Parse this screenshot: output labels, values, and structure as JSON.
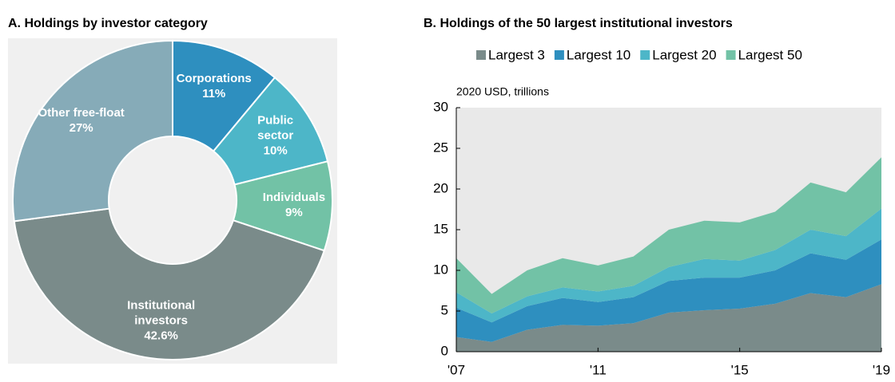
{
  "chart_data": [
    {
      "type": "pie",
      "title": "A. Holdings by investor category",
      "donut": true,
      "categories": [
        "Corporations",
        "Public sector",
        "Individuals",
        "Institutional investors",
        "Other free-float"
      ],
      "values": [
        11,
        10,
        9,
        42.6,
        27
      ],
      "value_labels": [
        "11%",
        "10%",
        "9%",
        "42.6%",
        "27%"
      ],
      "colors": [
        "#2e8fbf",
        "#4db6c8",
        "#72c2a6",
        "#7a8b8a",
        "#86abb8"
      ]
    },
    {
      "type": "stacked-area",
      "title": "B. Holdings of the 50 largest institutional investors",
      "y_label": "2020 USD, trillions",
      "x": [
        2007,
        2008,
        2009,
        2010,
        2011,
        2012,
        2013,
        2014,
        2015,
        2016,
        2017,
        2018,
        2019
      ],
      "series": [
        {
          "name": "Largest 3",
          "color": "#7a8b8a",
          "values": [
            1.8,
            1.2,
            2.7,
            3.3,
            3.2,
            3.5,
            4.8,
            5.1,
            5.3,
            5.9,
            7.2,
            6.7,
            8.3
          ]
        },
        {
          "name": "Largest 10",
          "color": "#2e8fbf",
          "values": [
            3.6,
            2.4,
            2.9,
            3.3,
            2.9,
            3.2,
            3.9,
            4.0,
            3.8,
            4.1,
            4.9,
            4.6,
            5.5
          ]
        },
        {
          "name": "Largest 20",
          "color": "#4db6c8",
          "values": [
            1.9,
            1.1,
            1.2,
            1.3,
            1.3,
            1.4,
            1.7,
            2.3,
            2.1,
            2.5,
            2.9,
            2.9,
            3.8
          ]
        },
        {
          "name": "Largest 50",
          "color": "#72c2a6",
          "values": [
            4.2,
            2.4,
            3.2,
            3.6,
            3.2,
            3.6,
            4.6,
            4.7,
            4.7,
            4.7,
            5.8,
            5.4,
            6.3
          ]
        }
      ],
      "xlim": [
        2007,
        2019
      ],
      "xticks": [
        {
          "value": 2007,
          "label": "'07"
        },
        {
          "value": 2011,
          "label": "'11"
        },
        {
          "value": 2015,
          "label": "'15"
        },
        {
          "value": 2019,
          "label": "'19"
        }
      ],
      "ylim": [
        0,
        30
      ],
      "yticks": [
        0,
        5,
        10,
        15,
        20,
        25,
        30
      ],
      "legend": "top"
    }
  ]
}
